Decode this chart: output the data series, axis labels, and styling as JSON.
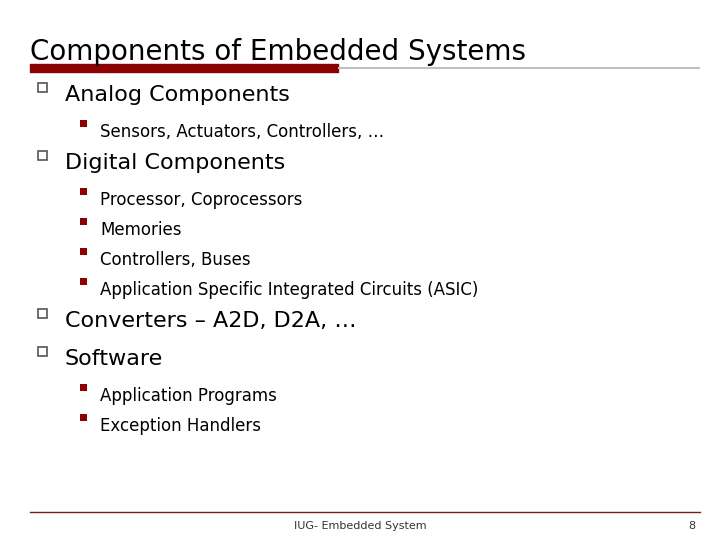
{
  "title": "Components of Embedded Systems",
  "title_fontsize": 20,
  "title_color": "#000000",
  "bg_color": "#ffffff",
  "divider_color_left": "#8B0000",
  "divider_color_right": "#C0C0C0",
  "divider_split": 0.46,
  "footer_text": "IUG- Embedded System",
  "footer_page": "8",
  "items": [
    {
      "level": 1,
      "text": "Analog Components",
      "fontsize": 16
    },
    {
      "level": 2,
      "text": "Sensors, Actuators, Controllers, …",
      "fontsize": 12
    },
    {
      "level": 1,
      "text": "Digital Components",
      "fontsize": 16
    },
    {
      "level": 2,
      "text": "Processor, Coprocessors",
      "fontsize": 12
    },
    {
      "level": 2,
      "text": "Memories",
      "fontsize": 12
    },
    {
      "level": 2,
      "text": "Controllers, Buses",
      "fontsize": 12
    },
    {
      "level": 2,
      "text": "Application Specific Integrated Circuits (ASIC)",
      "fontsize": 12
    },
    {
      "level": 1,
      "text": "Converters – A2D, D2A, …",
      "fontsize": 16
    },
    {
      "level": 1,
      "text": "Software",
      "fontsize": 16
    },
    {
      "level": 2,
      "text": "Application Programs",
      "fontsize": 12
    },
    {
      "level": 2,
      "text": "Exception Handlers",
      "fontsize": 12
    }
  ]
}
